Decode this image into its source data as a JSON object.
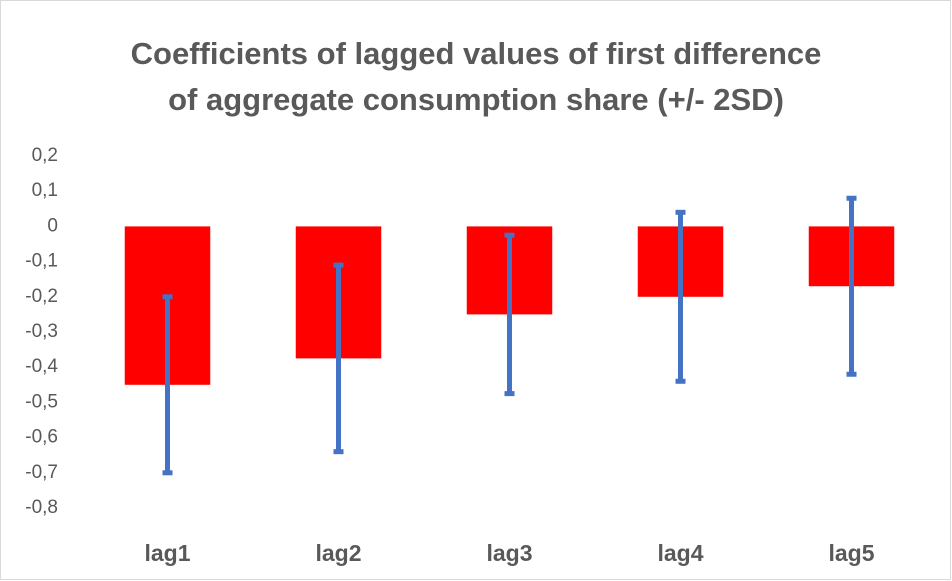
{
  "chart_data": {
    "type": "bar",
    "title": [
      "Coefficients of lagged values of first difference",
      "of aggregate consumption share (+/- 2SD)"
    ],
    "categories": [
      "lag1",
      "lag2",
      "lag3",
      "lag4",
      "lag5"
    ],
    "series": [
      {
        "color": "#ff0000",
        "error_color": "#4472c4",
        "values": [
          -0.45,
          -0.375,
          -0.25,
          -0.2,
          -0.17
        ],
        "errors": [
          0.25,
          0.265,
          0.225,
          0.24,
          0.25
        ]
      }
    ],
    "ylim": [
      -0.8,
      0.2
    ],
    "yticks": [
      {
        "value": 0.2,
        "label": "0,2"
      },
      {
        "value": 0.1,
        "label": "0,1"
      },
      0,
      {
        "value": -0.1,
        "label": "-0,1"
      },
      {
        "value": -0.2,
        "label": "-0,2"
      },
      {
        "value": -0.3,
        "label": "-0,3"
      },
      {
        "value": -0.4,
        "label": "-0,4"
      },
      {
        "value": -0.5,
        "label": "-0,5"
      },
      {
        "value": -0.6,
        "label": "-0,6"
      },
      {
        "value": -0.7,
        "label": "-0,7"
      },
      {
        "value": -0.8,
        "label": "-0,8"
      }
    ],
    "grid": false
  }
}
